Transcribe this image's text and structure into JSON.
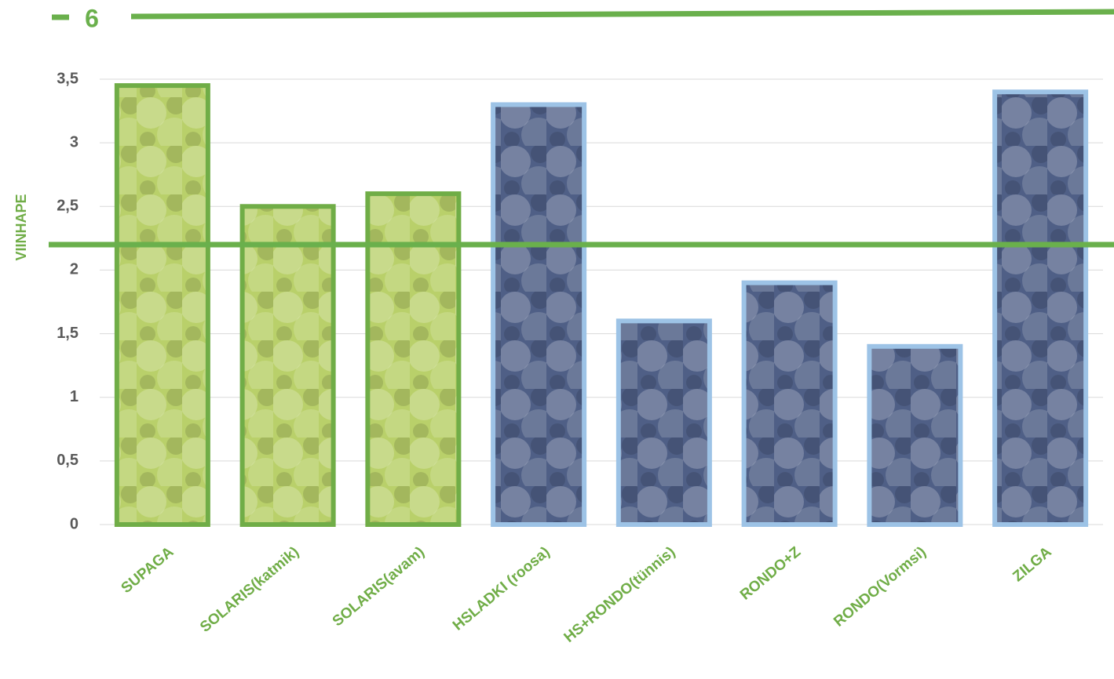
{
  "page_number": "6",
  "chart_data": {
    "type": "bar",
    "y_label": "VIINHAPE",
    "categories": [
      "SUPAGA",
      "SOLARIS(katmik)",
      "SOLARIS(avam)",
      "HSLADKI (roosa)",
      "HS+RONDO(tünnis)",
      "RONDO+Z",
      "RONDO(Vormsi)",
      "ZILGA"
    ],
    "values": [
      3.45,
      2.5,
      2.6,
      3.3,
      1.6,
      1.9,
      1.4,
      3.4
    ],
    "colors": [
      "#70ad47",
      "#70ad47",
      "#70ad47",
      "#9dc3e6",
      "#9dc3e6",
      "#9dc3e6",
      "#9dc3e6",
      "#9dc3e6"
    ],
    "fills": [
      "#b9d06a",
      "#b9d06a",
      "#b9d06a",
      "#4f5f86",
      "#4f5f86",
      "#4f5f86",
      "#4f5f86",
      "#4f5f86"
    ],
    "ylim": [
      0,
      3.5
    ],
    "yticks": [
      0,
      {
        "value": 0.5,
        "label": "0,5"
      },
      1,
      {
        "value": 1.5,
        "label": "1,5"
      },
      2,
      {
        "value": 2.5,
        "label": "2,5"
      },
      3,
      {
        "value": 3.5,
        "label": "3,5"
      }
    ],
    "grid": true,
    "reference_line": {
      "value": 2.2,
      "color": "#6ab04c"
    }
  }
}
